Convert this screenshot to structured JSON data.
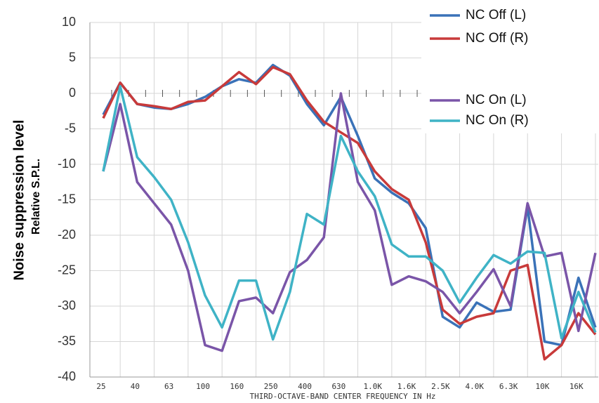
{
  "chart_data": {
    "type": "line",
    "y_label": "Noise suppression level",
    "y_sublabel": "Relative S.P.L.",
    "x_label": "THIRD-OCTAVE-BAND CENTER FREQUENCY IN Hz",
    "categories": [
      "25",
      null,
      "40",
      null,
      "63",
      null,
      "100",
      null,
      "160",
      null,
      "250",
      null,
      "400",
      null,
      "630",
      null,
      "1.0K",
      null,
      "1.6K",
      null,
      "2.5K",
      null,
      "4.0K",
      null,
      "6.3K",
      null,
      "10K",
      null,
      "16K",
      null
    ],
    "ylim": [
      -40,
      10
    ],
    "yticks": [
      10,
      5,
      0,
      -5,
      -10,
      -15,
      -20,
      -25,
      -30,
      -35,
      -40
    ],
    "grid": true,
    "series": [
      {
        "name": "NC Off (L)",
        "color": "#3a72b8",
        "values": [
          -3,
          1.5,
          -1.5,
          -2,
          -2.2,
          -1.5,
          -0.5,
          1,
          2,
          1.5,
          4,
          2.5,
          -1.5,
          -4.5,
          -0.5,
          -6,
          -12,
          -14,
          -15.5,
          -19,
          -31.5,
          -33,
          -29.5,
          -30.8,
          -30.5,
          -16,
          -35,
          -35.5,
          -26,
          -33
        ]
      },
      {
        "name": "NC Off (R)",
        "color": "#c83a3a",
        "values": [
          -3.5,
          1.5,
          -1.5,
          -1.8,
          -2.2,
          -1.2,
          -1,
          1,
          3,
          1.3,
          3.7,
          2.7,
          -1,
          -4,
          -5.5,
          -7,
          -11,
          -13.5,
          -15,
          -21,
          -30.5,
          -32.5,
          -31.5,
          -31,
          -25,
          -24.2,
          -37.5,
          -35.5,
          -31,
          -34
        ]
      },
      {
        "name": "NC On (L)",
        "color": "#7a55a8",
        "values": [
          -11,
          -1.5,
          -12.5,
          -15.5,
          -18.5,
          -25,
          -35.5,
          -36.3,
          -29.3,
          -28.8,
          -31,
          -25.2,
          -23.5,
          -20.3,
          0,
          -12.5,
          -16.5,
          -27,
          -25.8,
          -26.5,
          -28,
          -31,
          -28,
          -24.8,
          -30,
          -15.5,
          -23,
          -22.5,
          -33.5,
          -22.5
        ]
      },
      {
        "name": "NC On (R)",
        "color": "#3fb3c6",
        "values": [
          -11,
          1,
          -9,
          -11.8,
          -15,
          -21,
          -28.5,
          -33,
          -26.4,
          -26.4,
          -34.7,
          -28,
          -17,
          -18.5,
          -6,
          -11,
          -14.5,
          -21.3,
          -23,
          -23,
          -25,
          -29.5,
          -26,
          -22.8,
          -24,
          -22.3,
          -22.5,
          -34.5,
          -28,
          -33.7
        ]
      }
    ]
  }
}
